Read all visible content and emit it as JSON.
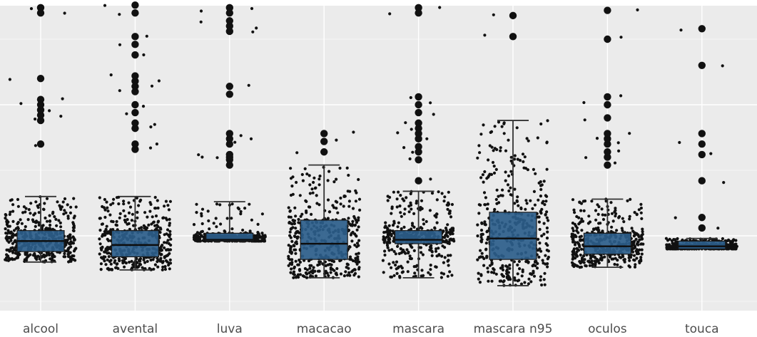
{
  "chart_data": {
    "type": "box",
    "overlay": "jittered-points",
    "title": "",
    "xlabel": "",
    "ylabel": "",
    "y_axis_visible": false,
    "grid": true,
    "ylim": [
      0,
      100
    ],
    "categories": [
      "alcool",
      "avental",
      "luva",
      "macacao",
      "mascara",
      "mascara n95",
      "oculos",
      "touca"
    ],
    "box_fill": "#2b5d8a",
    "panel_background": "#ebebeb",
    "gridline_color": "#ffffff",
    "point_color": "#111111",
    "boxes": [
      {
        "category": "alcool",
        "whisker_low": 15,
        "q1": 19,
        "median": 23,
        "q3": 27,
        "whisker_high": 40
      },
      {
        "category": "avental",
        "whisker_low": 12,
        "q1": 17,
        "median": 21.5,
        "q3": 27,
        "whisker_high": 40
      },
      {
        "category": "luva",
        "whisker_low": 23,
        "q1": 23,
        "median": 23.5,
        "q3": 26,
        "whisker_high": 38
      },
      {
        "category": "macacao",
        "whisker_low": 9,
        "q1": 16,
        "median": 22,
        "q3": 31,
        "whisker_high": 52
      },
      {
        "category": "mascara",
        "whisker_low": 9,
        "q1": 22,
        "median": 23.5,
        "q3": 27,
        "whisker_high": 42
      },
      {
        "category": "mascara n95",
        "whisker_low": 6,
        "q1": 16,
        "median": 24,
        "q3": 34,
        "whisker_high": 69
      },
      {
        "category": "oculos",
        "whisker_low": 13,
        "q1": 18,
        "median": 21,
        "q3": 26,
        "whisker_high": 39
      },
      {
        "category": "touca",
        "whisker_low": 20,
        "q1": 20,
        "median": 21,
        "q3": 23,
        "whisker_high": 24
      }
    ],
    "outliers": [
      {
        "category": "alcool",
        "values": [
          60,
          69,
          71,
          73,
          75,
          77,
          85,
          110,
          112
        ]
      },
      {
        "category": "avental",
        "values": [
          58,
          60,
          66,
          68,
          72,
          75,
          80,
          82,
          84,
          86,
          94,
          98,
          101,
          110,
          113
        ]
      },
      {
        "category": "luva",
        "values": [
          52,
          54,
          55,
          56,
          60,
          62,
          64,
          79,
          82,
          103,
          105,
          107,
          110,
          112,
          116,
          118,
          121
        ]
      },
      {
        "category": "macacao",
        "values": [
          57,
          61,
          64
        ]
      },
      {
        "category": "mascara",
        "values": [
          46,
          54,
          57,
          59,
          62,
          64,
          66,
          68,
          72,
          75,
          78,
          110,
          112
        ]
      },
      {
        "category": "mascara n95",
        "values": [
          101,
          109
        ]
      },
      {
        "category": "oculos",
        "values": [
          52,
          55,
          57,
          60,
          62,
          64,
          70,
          75,
          78,
          100,
          111
        ]
      },
      {
        "category": "touca",
        "values": [
          28,
          32,
          46,
          56,
          60,
          64,
          90,
          104,
          114
        ]
      }
    ]
  }
}
